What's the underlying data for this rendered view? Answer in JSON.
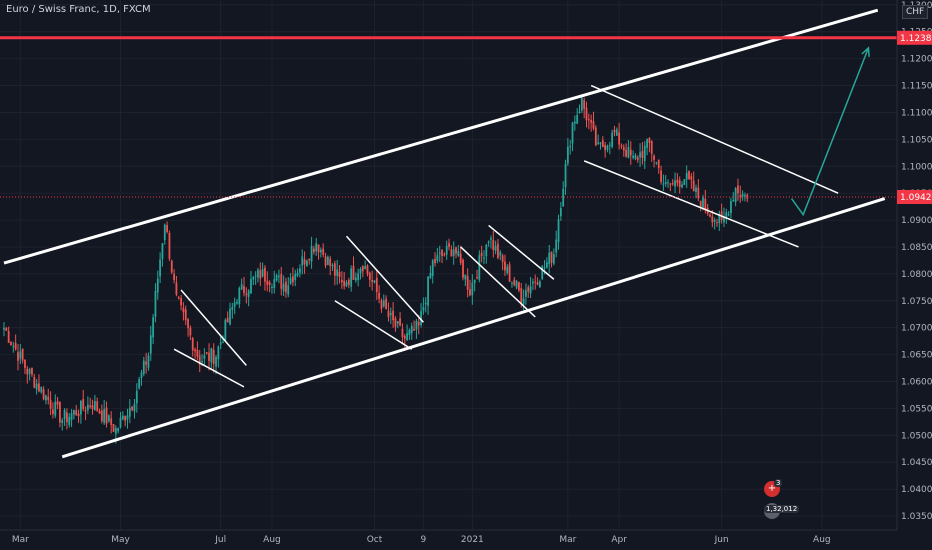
{
  "header": {
    "title": "Euro / Swiss Franc, 1D, FXCM",
    "currency": "CHF"
  },
  "colors": {
    "background": "#131722",
    "bull": "#26a69a",
    "bear": "#ef5350",
    "trend": "#ffffff",
    "resistance": "#f23645",
    "arrow": "#26a69a",
    "current_price": "#f23645",
    "axis_text": "#b2b5be"
  },
  "badges": {
    "first_count": "3",
    "second_count": "1,32,012"
  },
  "chart_data": {
    "type": "candlestick",
    "ylim": [
      1.0324,
      1.1309
    ],
    "yticks": [
      "1.13000",
      "1.12500",
      "1.12000",
      "1.11500",
      "1.11000",
      "1.10500",
      "1.10000",
      "1.09500",
      "1.09000",
      "1.08500",
      "1.08000",
      "1.07500",
      "1.07000",
      "1.06500",
      "1.06000",
      "1.05500",
      "1.05000",
      "1.04500",
      "1.04000",
      "1.03500"
    ],
    "xticks": [
      {
        "label": "Mar",
        "idx": 7
      },
      {
        "label": "May",
        "idx": 50
      },
      {
        "label": "Jul",
        "idx": 93
      },
      {
        "label": "Aug",
        "idx": 115
      },
      {
        "label": "Oct",
        "idx": 159
      },
      {
        "label": "9",
        "idx": 180
      },
      {
        "label": "2021",
        "idx": 201
      },
      {
        "label": "Mar",
        "idx": 242
      },
      {
        "label": "Apr",
        "idx": 264
      },
      {
        "label": "Jun",
        "idx": 308
      },
      {
        "label": "Aug",
        "idx": 351
      }
    ],
    "horizontal_level": {
      "value": 1.12388,
      "label": "1.12388"
    },
    "current_price": {
      "value": 1.09429,
      "label": "1.09429"
    },
    "key_points": [
      {
        "idx": 0,
        "close": 1.07
      },
      {
        "idx": 10,
        "close": 1.062
      },
      {
        "idx": 25,
        "close": 1.053
      },
      {
        "idx": 38,
        "close": 1.056
      },
      {
        "idx": 48,
        "close": 1.051
      },
      {
        "idx": 55,
        "close": 1.056
      },
      {
        "idx": 62,
        "close": 1.065
      },
      {
        "idx": 69,
        "close": 1.09
      },
      {
        "idx": 74,
        "close": 1.075
      },
      {
        "idx": 84,
        "close": 1.064
      },
      {
        "idx": 91,
        "close": 1.065
      },
      {
        "idx": 100,
        "close": 1.076
      },
      {
        "idx": 110,
        "close": 1.08
      },
      {
        "idx": 121,
        "close": 1.078
      },
      {
        "idx": 134,
        "close": 1.086
      },
      {
        "idx": 145,
        "close": 1.078
      },
      {
        "idx": 154,
        "close": 1.082
      },
      {
        "idx": 165,
        "close": 1.072
      },
      {
        "idx": 172,
        "close": 1.068
      },
      {
        "idx": 178,
        "close": 1.07
      },
      {
        "idx": 184,
        "close": 1.082
      },
      {
        "idx": 193,
        "close": 1.085
      },
      {
        "idx": 200,
        "close": 1.077
      },
      {
        "idx": 208,
        "close": 1.087
      },
      {
        "idx": 215,
        "close": 1.081
      },
      {
        "idx": 222,
        "close": 1.076
      },
      {
        "idx": 230,
        "close": 1.08
      },
      {
        "idx": 236,
        "close": 1.084
      },
      {
        "idx": 240,
        "close": 1.097
      },
      {
        "idx": 244,
        "close": 1.108
      },
      {
        "idx": 248,
        "close": 1.112
      },
      {
        "idx": 255,
        "close": 1.103
      },
      {
        "idx": 262,
        "close": 1.106
      },
      {
        "idx": 270,
        "close": 1.101
      },
      {
        "idx": 277,
        "close": 1.104
      },
      {
        "idx": 284,
        "close": 1.096
      },
      {
        "idx": 292,
        "close": 1.098
      },
      {
        "idx": 300,
        "close": 1.093
      },
      {
        "idx": 308,
        "close": 1.089
      },
      {
        "idx": 314,
        "close": 1.096
      },
      {
        "idx": 319,
        "close": 1.094
      }
    ],
    "channel_lines": [
      {
        "from": {
          "idx": 0,
          "price": 1.082
        },
        "to": {
          "idx": 375,
          "price": 1.129
        }
      },
      {
        "from": {
          "idx": 25,
          "price": 1.046
        },
        "to": {
          "idx": 378,
          "price": 1.094
        }
      }
    ],
    "flag_lines": [
      {
        "from": {
          "idx": 76,
          "price": 1.077
        },
        "to": {
          "idx": 104,
          "price": 1.063
        }
      },
      {
        "from": {
          "idx": 73,
          "price": 1.066
        },
        "to": {
          "idx": 103,
          "price": 1.059
        }
      },
      {
        "from": {
          "idx": 147,
          "price": 1.087
        },
        "to": {
          "idx": 180,
          "price": 1.071
        }
      },
      {
        "from": {
          "idx": 142,
          "price": 1.075
        },
        "to": {
          "idx": 175,
          "price": 1.066
        }
      },
      {
        "from": {
          "idx": 208,
          "price": 1.089
        },
        "to": {
          "idx": 236,
          "price": 1.079
        }
      },
      {
        "from": {
          "idx": 196,
          "price": 1.085
        },
        "to": {
          "idx": 228,
          "price": 1.072
        }
      },
      {
        "from": {
          "idx": 252,
          "price": 1.115
        },
        "to": {
          "idx": 358,
          "price": 1.095
        }
      },
      {
        "from": {
          "idx": 249,
          "price": 1.101
        },
        "to": {
          "idx": 341,
          "price": 1.085
        }
      }
    ],
    "projection_path": [
      {
        "idx": 338,
        "price": 1.094
      },
      {
        "idx": 343,
        "price": 1.091
      },
      {
        "idx": 371,
        "price": 1.122
      }
    ]
  }
}
